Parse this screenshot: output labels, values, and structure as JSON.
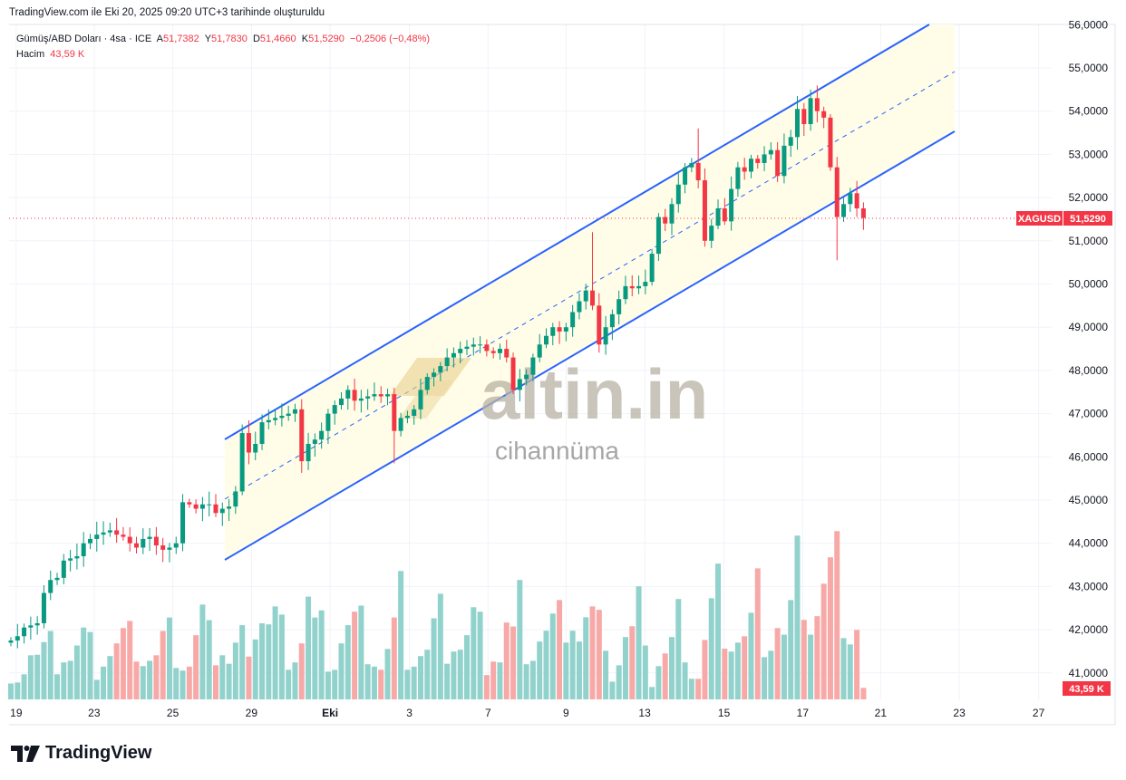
{
  "caption": "TradingView.com ile Eki 20, 2025 09:20 UTC+3 tarihinde oluşturuldu",
  "legend": {
    "symbol": "Gümüş/ABD Doları · 4sa · ICE",
    "open_label": "A",
    "open": "51,7382",
    "high_label": "Y",
    "high": "51,7830",
    "low_label": "D",
    "low": "51,4660",
    "close_label": "K",
    "close": "51,5290",
    "change": "−0,2506 (−0,48%)",
    "volume_label": "Hacim",
    "volume": "43,59 K"
  },
  "price_tag": {
    "symbol": "XAGUSD",
    "value": "51,5290"
  },
  "volume_tag": "43,59 K",
  "watermark": {
    "logo": "altin.in",
    "sub": "cihannüma"
  },
  "brand": "TradingView",
  "colors": {
    "up": "#089981",
    "down": "#f23645",
    "vol_up": "#92d2cc",
    "vol_down": "#f7a9a7",
    "channel": "#2962ff",
    "channel_fill": "#fffde7"
  },
  "chart_data": {
    "type": "candlestick",
    "title": "Gümüş/ABD Doları · 4sa · ICE",
    "ylim": [
      40.3,
      56.05
    ],
    "y_ticks": [
      "56,0000",
      "55,0000",
      "54,0000",
      "53,0000",
      "52,0000",
      "51,0000",
      "50,0000",
      "49,0000",
      "48,0000",
      "47,0000",
      "46,0000",
      "45,0000",
      "44,0000",
      "43,0000",
      "42,0000",
      "41,0000"
    ],
    "y_tick_values": [
      56,
      55,
      54,
      53,
      52,
      51,
      50,
      49,
      48,
      47,
      46,
      45,
      44,
      43,
      42,
      41
    ],
    "x_ticks": [
      {
        "label": "19",
        "bar": 0.8
      },
      {
        "label": "23",
        "bar": 12.6
      },
      {
        "label": "25",
        "bar": 24.5
      },
      {
        "label": "29",
        "bar": 36.4
      },
      {
        "label": "Eki",
        "bar": 48.3
      },
      {
        "label": "3",
        "bar": 60.3
      },
      {
        "label": "7",
        "bar": 72.2
      },
      {
        "label": "9",
        "bar": 84
      },
      {
        "label": "13",
        "bar": 95.9
      },
      {
        "label": "15",
        "bar": 107.9
      },
      {
        "label": "17",
        "bar": 119.8
      },
      {
        "label": "21",
        "bar": 131.6
      },
      {
        "label": "23",
        "bar": 143.5
      },
      {
        "label": "27",
        "bar": 155.5
      }
    ],
    "first_open": 41.7,
    "closes": [
      41.75,
      41.85,
      42.05,
      42.1,
      42.15,
      42.85,
      43.15,
      43.2,
      43.6,
      43.65,
      43.7,
      44.0,
      44.1,
      44.2,
      44.25,
      44.3,
      44.2,
      44.15,
      44.0,
      43.9,
      44.1,
      44.15,
      43.95,
      43.85,
      43.9,
      44.0,
      44.95,
      44.9,
      44.8,
      44.9,
      44.9,
      44.7,
      44.8,
      44.85,
      45.2,
      46.55,
      46.1,
      46.3,
      46.8,
      46.85,
      46.9,
      46.95,
      47.0,
      47.1,
      45.9,
      46.3,
      46.4,
      46.6,
      47.0,
      47.2,
      47.35,
      47.55,
      47.3,
      47.35,
      47.4,
      47.45,
      47.4,
      47.45,
      46.6,
      46.9,
      46.95,
      47.1,
      47.55,
      47.85,
      47.95,
      48.1,
      48.3,
      48.4,
      48.5,
      48.55,
      48.6,
      48.6,
      48.45,
      48.4,
      48.5,
      48.3,
      47.55,
      47.8,
      47.9,
      48.3,
      48.6,
      48.8,
      49.0,
      48.9,
      49.0,
      49.35,
      49.6,
      49.85,
      49.5,
      48.6,
      49.0,
      49.3,
      49.65,
      49.95,
      49.9,
      49.95,
      50.05,
      50.7,
      51.55,
      51.4,
      51.85,
      52.3,
      52.7,
      52.8,
      52.4,
      51.0,
      51.35,
      51.75,
      51.45,
      52.2,
      52.7,
      52.6,
      52.9,
      52.8,
      53.0,
      53.1,
      52.5,
      53.2,
      53.4,
      54.05,
      53.7,
      54.3,
      54.0,
      53.85,
      52.7,
      51.55,
      51.85,
      52.1,
      51.75,
      51.529
    ],
    "notable_wicks": [
      {
        "bar": 58,
        "low": 45.85
      },
      {
        "bar": 88,
        "high": 51.2
      },
      {
        "bar": 104,
        "high": 53.6
      },
      {
        "bar": 125,
        "low": 50.55
      },
      {
        "bar": 35,
        "high": 46.75
      },
      {
        "bar": 121,
        "high": 54.5
      }
    ],
    "volume_unit": "K",
    "volumes": [
      60,
      64,
      95,
      167,
      169,
      217,
      259,
      95,
      140,
      146,
      204,
      272,
      255,
      74,
      124,
      164,
      212,
      270,
      297,
      143,
      126,
      146,
      167,
      259,
      310,
      119,
      109,
      124,
      243,
      359,
      300,
      129,
      167,
      135,
      215,
      281,
      162,
      227,
      288,
      284,
      352,
      321,
      112,
      140,
      212,
      389,
      310,
      337,
      105,
      112,
      212,
      281,
      332,
      355,
      133,
      124,
      112,
      191,
      310,
      486,
      112,
      124,
      164,
      188,
      307,
      400,
      135,
      181,
      188,
      243,
      349,
      332,
      92,
      143,
      140,
      291,
      276,
      452,
      133,
      146,
      219,
      260,
      325,
      376,
      215,
      260,
      219,
      311,
      352,
      339,
      184,
      67,
      129,
      236,
      277,
      428,
      204,
      47,
      126,
      174,
      236,
      380,
      140,
      78,
      78,
      225,
      383,
      514,
      192,
      181,
      215,
      239,
      328,
      496,
      160,
      184,
      270,
      245,
      376,
      620,
      301,
      245,
      315,
      438,
      538,
      637,
      232,
      208,
      263,
      43.59
    ]
  }
}
